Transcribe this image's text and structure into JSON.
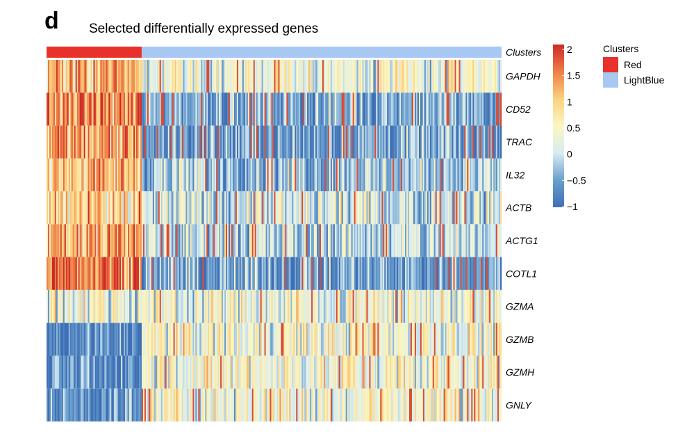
{
  "panel_label": "d",
  "chart_data": {
    "type": "heatmap",
    "title": "Selected differentially expressed genes",
    "annotation_row_label": "Clusters",
    "rows": [
      "GAPDH",
      "CD52",
      "TRAC",
      "IL32",
      "ACTB",
      "ACTG1",
      "COTL1",
      "GZMA",
      "GZMB",
      "GZMH",
      "GNLY"
    ],
    "clusters": [
      {
        "name": "Red",
        "color": "#e8312b",
        "cell_fraction": 0.21
      },
      {
        "name": "LightBlue",
        "color": "#a6c8f2",
        "cell_fraction": 0.79
      }
    ],
    "colorbar": {
      "min": -1,
      "max": 2,
      "ticks": [
        "2",
        "1.5",
        "1",
        "0.5",
        "0",
        "−0.5",
        "−1"
      ],
      "stops": [
        {
          "value": -1,
          "color": "#3f6fb5"
        },
        {
          "value": -0.5,
          "color": "#6a9fcd"
        },
        {
          "value": 0,
          "color": "#d8ecf2"
        },
        {
          "value": 0.5,
          "color": "#fbf6c2"
        },
        {
          "value": 1,
          "color": "#fbd17e"
        },
        {
          "value": 1.5,
          "color": "#ef7e48"
        },
        {
          "value": 2,
          "color": "#cc2a26"
        }
      ]
    },
    "mean_expression": [
      {
        "gene": "GAPDH",
        "Red": 1.2,
        "LightBlue": 0.3
      },
      {
        "gene": "CD52",
        "Red": 1.4,
        "LightBlue": -0.4
      },
      {
        "gene": "TRAC",
        "Red": 1.3,
        "LightBlue": -0.5
      },
      {
        "gene": "IL32",
        "Red": 1.1,
        "LightBlue": -0.2
      },
      {
        "gene": "ACTB",
        "Red": 0.9,
        "LightBlue": 0.0
      },
      {
        "gene": "ACTG1",
        "Red": 1.3,
        "LightBlue": -0.1
      },
      {
        "gene": "COTL1",
        "Red": 1.7,
        "LightBlue": -0.5
      },
      {
        "gene": "GZMA",
        "Red": 0.4,
        "LightBlue": 0.3
      },
      {
        "gene": "GZMB",
        "Red": -0.8,
        "LightBlue": 0.4
      },
      {
        "gene": "GZMH",
        "Red": -0.7,
        "LightBlue": 0.4
      },
      {
        "gene": "GNLY",
        "Red": -0.6,
        "LightBlue": 0.4
      }
    ],
    "legend": {
      "title": "Clusters",
      "position": "right"
    }
  }
}
